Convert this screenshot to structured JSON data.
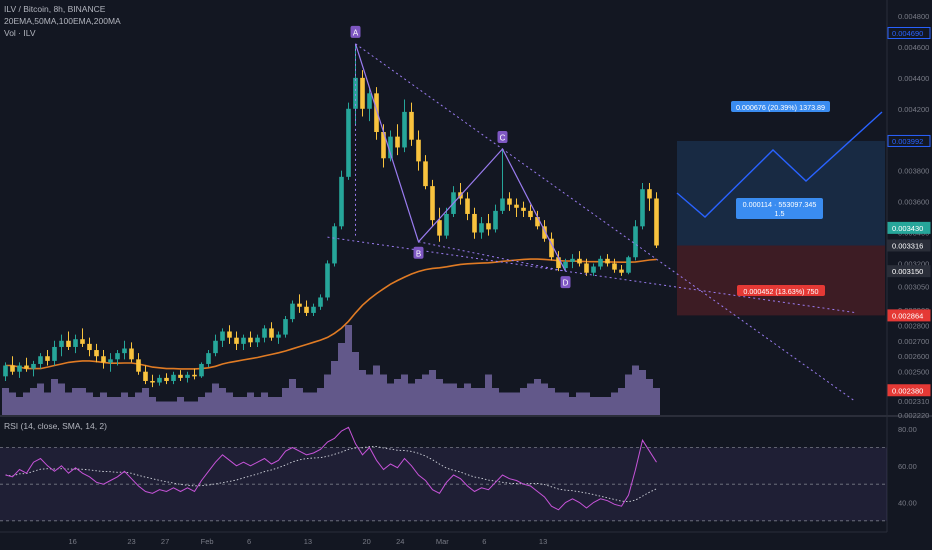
{
  "header": {
    "symbol_line": "ILV / Bitcoin, 8h, BINANCE",
    "ma_line": "20EMA,50MA,100EMA,200MA",
    "vol_line": "Vol · ILV",
    "rsi_line": "RSI (14, close, SMA, 14, 2)"
  },
  "colors": {
    "background": "#131722",
    "up_candle": "#26a69a",
    "down_candle": "#f9c33e",
    "ema": "#e07b24",
    "volume": "#7e6fae",
    "pattern": "#9a7cf0",
    "target": "#2962ff",
    "rsi": "#c653d8"
  },
  "chart_data": {
    "type": "candlestick",
    "price_axis": {
      "ticks": [
        "0.004800",
        "0.004600",
        "0.004400",
        "0.004200",
        "0.004000",
        "0.003800",
        "0.003600",
        "0.003400",
        "0.003200",
        "0.003050",
        "0.002900",
        "0.002800",
        "0.002700",
        "0.002600",
        "0.002500",
        "0.002400",
        "0.002310",
        "0.002220"
      ],
      "tags": [
        {
          "text": "0.004690",
          "price": 0.00469,
          "style": "blue-outline"
        },
        {
          "text": "0.003992",
          "price": 0.003992,
          "style": "blue-outline"
        },
        {
          "text": "0.003430",
          "price": 0.00343,
          "style": "green"
        },
        {
          "text": "0.003316",
          "price": 0.003316,
          "style": "gray"
        },
        {
          "text": "0.003150",
          "price": 0.00315,
          "style": "gray"
        },
        {
          "text": "0.002864",
          "price": 0.002864,
          "style": "red"
        },
        {
          "text": "0.002380",
          "price": 0.00238,
          "style": "red"
        }
      ]
    },
    "time_axis": [
      {
        "label": "16",
        "pos": 16
      },
      {
        "label": "23",
        "pos": 30
      },
      {
        "label": "27",
        "pos": 38
      },
      {
        "label": "Feb",
        "pos": 48
      },
      {
        "label": "6",
        "pos": 58
      },
      {
        "label": "13",
        "pos": 72
      },
      {
        "label": "20",
        "pos": 86
      },
      {
        "label": "24",
        "pos": 94
      },
      {
        "label": "Mar",
        "pos": 104
      },
      {
        "label": "6",
        "pos": 114
      },
      {
        "label": "13",
        "pos": 128
      }
    ],
    "candles": [
      [
        0.00247,
        0.00256,
        0.00244,
        0.00254
      ],
      [
        0.00254,
        0.0026,
        0.00248,
        0.0025
      ],
      [
        0.0025,
        0.00256,
        0.00246,
        0.00254
      ],
      [
        0.00254,
        0.00259,
        0.0025,
        0.00252
      ],
      [
        0.00252,
        0.00257,
        0.00247,
        0.00255
      ],
      [
        0.00255,
        0.00262,
        0.00252,
        0.0026
      ],
      [
        0.0026,
        0.00264,
        0.00254,
        0.00257
      ],
      [
        0.00257,
        0.0027,
        0.00254,
        0.00266
      ],
      [
        0.00266,
        0.00274,
        0.0026,
        0.0027
      ],
      [
        0.0027,
        0.00276,
        0.00264,
        0.00266
      ],
      [
        0.00266,
        0.00274,
        0.00262,
        0.00271
      ],
      [
        0.00271,
        0.00278,
        0.00266,
        0.00268
      ],
      [
        0.00268,
        0.00272,
        0.0026,
        0.00264
      ],
      [
        0.00264,
        0.00268,
        0.00256,
        0.0026
      ],
      [
        0.0026,
        0.00264,
        0.00252,
        0.00256
      ],
      [
        0.00256,
        0.00262,
        0.0025,
        0.00258
      ],
      [
        0.00258,
        0.00264,
        0.00254,
        0.00262
      ],
      [
        0.00262,
        0.0027,
        0.00258,
        0.00265
      ],
      [
        0.00265,
        0.00269,
        0.00256,
        0.00258
      ],
      [
        0.00258,
        0.00262,
        0.00248,
        0.0025
      ],
      [
        0.0025,
        0.00254,
        0.00242,
        0.00244
      ],
      [
        0.00244,
        0.00248,
        0.0024,
        0.00243
      ],
      [
        0.00243,
        0.00248,
        0.00241,
        0.00246
      ],
      [
        0.00246,
        0.00249,
        0.00242,
        0.00244
      ],
      [
        0.00244,
        0.0025,
        0.00242,
        0.00248
      ],
      [
        0.00248,
        0.00251,
        0.00244,
        0.00246
      ],
      [
        0.00246,
        0.0025,
        0.00243,
        0.00248
      ],
      [
        0.00248,
        0.00252,
        0.00245,
        0.00247
      ],
      [
        0.00247,
        0.00256,
        0.00246,
        0.00255
      ],
      [
        0.00255,
        0.00264,
        0.00253,
        0.00262
      ],
      [
        0.00262,
        0.00274,
        0.0026,
        0.0027
      ],
      [
        0.0027,
        0.00278,
        0.00266,
        0.00276
      ],
      [
        0.00276,
        0.0028,
        0.00268,
        0.00272
      ],
      [
        0.00272,
        0.00276,
        0.00264,
        0.00268
      ],
      [
        0.00268,
        0.00274,
        0.00264,
        0.00272
      ],
      [
        0.00272,
        0.00276,
        0.00266,
        0.00269
      ],
      [
        0.00269,
        0.00274,
        0.00266,
        0.00272
      ],
      [
        0.00272,
        0.0028,
        0.00269,
        0.00278
      ],
      [
        0.00278,
        0.00282,
        0.0027,
        0.00272
      ],
      [
        0.00272,
        0.00276,
        0.00268,
        0.00274
      ],
      [
        0.00274,
        0.00286,
        0.00272,
        0.00284
      ],
      [
        0.00284,
        0.00296,
        0.00282,
        0.00294
      ],
      [
        0.00294,
        0.003,
        0.00288,
        0.00292
      ],
      [
        0.00292,
        0.00296,
        0.00286,
        0.00288
      ],
      [
        0.00288,
        0.00294,
        0.00286,
        0.00292
      ],
      [
        0.00292,
        0.003,
        0.0029,
        0.00298
      ],
      [
        0.00298,
        0.00322,
        0.00296,
        0.0032
      ],
      [
        0.0032,
        0.00346,
        0.00318,
        0.00344
      ],
      [
        0.00344,
        0.0038,
        0.00342,
        0.00376
      ],
      [
        0.00376,
        0.00424,
        0.00374,
        0.0042
      ],
      [
        0.0042,
        0.00462,
        0.0041,
        0.0044
      ],
      [
        0.0044,
        0.00445,
        0.00415,
        0.0042
      ],
      [
        0.0042,
        0.00434,
        0.00412,
        0.0043
      ],
      [
        0.0043,
        0.00434,
        0.004,
        0.00405
      ],
      [
        0.00405,
        0.0041,
        0.00382,
        0.00388
      ],
      [
        0.00388,
        0.00406,
        0.00386,
        0.00402
      ],
      [
        0.00402,
        0.0041,
        0.0039,
        0.00395
      ],
      [
        0.00395,
        0.00426,
        0.00392,
        0.00418
      ],
      [
        0.00418,
        0.00424,
        0.00396,
        0.004
      ],
      [
        0.004,
        0.00406,
        0.0038,
        0.00386
      ],
      [
        0.00386,
        0.0039,
        0.00368,
        0.0037
      ],
      [
        0.0037,
        0.00374,
        0.00344,
        0.00348
      ],
      [
        0.00348,
        0.00356,
        0.00334,
        0.00338
      ],
      [
        0.00338,
        0.00356,
        0.00336,
        0.00352
      ],
      [
        0.00352,
        0.0037,
        0.0035,
        0.00366
      ],
      [
        0.00366,
        0.00372,
        0.00358,
        0.00362
      ],
      [
        0.00362,
        0.00366,
        0.00348,
        0.00352
      ],
      [
        0.00352,
        0.00356,
        0.00336,
        0.0034
      ],
      [
        0.0034,
        0.0035,
        0.00336,
        0.00346
      ],
      [
        0.00346,
        0.00352,
        0.00338,
        0.00342
      ],
      [
        0.00342,
        0.00358,
        0.0034,
        0.00354
      ],
      [
        0.00354,
        0.00394,
        0.00352,
        0.00362
      ],
      [
        0.00362,
        0.00366,
        0.00354,
        0.00358
      ],
      [
        0.00358,
        0.00362,
        0.0035,
        0.00356
      ],
      [
        0.00356,
        0.0036,
        0.0035,
        0.00354
      ],
      [
        0.00354,
        0.00358,
        0.00348,
        0.0035
      ],
      [
        0.0035,
        0.00354,
        0.00342,
        0.00344
      ],
      [
        0.00344,
        0.00348,
        0.00334,
        0.00336
      ],
      [
        0.00336,
        0.0034,
        0.00322,
        0.00324
      ],
      [
        0.00324,
        0.00328,
        0.00315,
        0.00317
      ],
      [
        0.00317,
        0.00323,
        0.00315,
        0.00321
      ],
      [
        0.00321,
        0.00326,
        0.00317,
        0.00323
      ],
      [
        0.00323,
        0.00328,
        0.00318,
        0.0032
      ],
      [
        0.0032,
        0.00323,
        0.00312,
        0.00314
      ],
      [
        0.00314,
        0.0032,
        0.00312,
        0.00318
      ],
      [
        0.00318,
        0.00325,
        0.00316,
        0.00323
      ],
      [
        0.00323,
        0.00326,
        0.00318,
        0.0032
      ],
      [
        0.0032,
        0.00323,
        0.00314,
        0.00316
      ],
      [
        0.00316,
        0.00319,
        0.00312,
        0.00314
      ],
      [
        0.00314,
        0.00325,
        0.00313,
        0.00324
      ],
      [
        0.00324,
        0.00348,
        0.00322,
        0.00344
      ],
      [
        0.00344,
        0.00372,
        0.00342,
        0.00368
      ],
      [
        0.00368,
        0.00372,
        0.00354,
        0.00362
      ],
      [
        0.00362,
        0.00366,
        0.0033,
        0.003316
      ]
    ],
    "ema_values": [
      0.00254,
      0.00254,
      0.00253,
      0.00252,
      0.00252,
      0.00252,
      0.00253,
      0.00254,
      0.00255,
      0.00256,
      0.002565,
      0.00257,
      0.00257,
      0.002565,
      0.00256,
      0.002555,
      0.002555,
      0.002556,
      0.002556,
      0.00255,
      0.00254,
      0.00253,
      0.002525,
      0.00252,
      0.00252,
      0.002518,
      0.002518,
      0.002518,
      0.00252,
      0.002525,
      0.002535,
      0.00255,
      0.00256,
      0.002568,
      0.002576,
      0.002584,
      0.002592,
      0.002602,
      0.002612,
      0.002622,
      0.002634,
      0.002648,
      0.002662,
      0.002676,
      0.00269,
      0.002704,
      0.002722,
      0.002748,
      0.002782,
      0.002826,
      0.00288,
      0.00293,
      0.00297,
      0.003005,
      0.003036,
      0.003066,
      0.00309,
      0.003112,
      0.003132,
      0.003148,
      0.00316,
      0.003168,
      0.003172,
      0.003178,
      0.003186,
      0.003194,
      0.003198,
      0.0032,
      0.003202,
      0.003204,
      0.003208,
      0.003214,
      0.003218,
      0.003222,
      0.003226,
      0.003228,
      0.003228,
      0.003226,
      0.003222,
      0.003218,
      0.003216,
      0.003215,
      0.003214,
      0.003212,
      0.003211,
      0.003211,
      0.00321,
      0.003209,
      0.003208,
      0.003208,
      0.00321,
      0.003216,
      0.003222,
      0.003226
    ],
    "volume": [
      0.3,
      0.25,
      0.2,
      0.25,
      0.3,
      0.35,
      0.25,
      0.4,
      0.35,
      0.25,
      0.3,
      0.3,
      0.25,
      0.2,
      0.25,
      0.2,
      0.2,
      0.25,
      0.2,
      0.25,
      0.3,
      0.2,
      0.15,
      0.15,
      0.15,
      0.2,
      0.15,
      0.15,
      0.2,
      0.25,
      0.35,
      0.3,
      0.25,
      0.2,
      0.2,
      0.25,
      0.2,
      0.25,
      0.2,
      0.2,
      0.3,
      0.4,
      0.3,
      0.25,
      0.25,
      0.3,
      0.45,
      0.6,
      0.8,
      1.0,
      0.7,
      0.5,
      0.45,
      0.55,
      0.45,
      0.35,
      0.4,
      0.45,
      0.35,
      0.4,
      0.45,
      0.5,
      0.4,
      0.35,
      0.35,
      0.3,
      0.35,
      0.3,
      0.3,
      0.45,
      0.3,
      0.25,
      0.25,
      0.25,
      0.3,
      0.35,
      0.4,
      0.35,
      0.3,
      0.25,
      0.25,
      0.2,
      0.25,
      0.25,
      0.2,
      0.2,
      0.2,
      0.25,
      0.3,
      0.45,
      0.55,
      0.5,
      0.4,
      0.3
    ],
    "rsi": [
      55,
      54,
      58,
      56,
      62,
      64,
      60,
      57,
      60,
      56,
      59,
      56,
      54,
      51,
      50,
      52,
      54,
      57,
      53,
      49,
      46,
      45,
      47,
      46,
      48,
      46,
      48,
      46,
      52,
      57,
      62,
      66,
      63,
      60,
      62,
      60,
      62,
      64,
      61,
      63,
      68,
      70,
      68,
      66,
      67,
      69,
      73,
      75,
      79,
      81,
      72,
      66,
      70,
      63,
      58,
      61,
      59,
      64,
      60,
      55,
      52,
      47,
      45,
      51,
      55,
      53,
      49,
      46,
      48,
      47,
      51,
      55,
      53,
      52,
      50,
      49,
      46,
      43,
      38,
      36,
      40,
      42,
      40,
      37,
      40,
      42,
      41,
      39,
      38,
      44,
      58,
      74,
      68,
      62
    ],
    "rsi_axis": {
      "ticks": [
        80,
        60,
        40
      ],
      "upper_band": 70,
      "lower_band": 30,
      "mid": 50,
      "range": [
        25,
        85
      ]
    },
    "pattern_points": [
      {
        "label": "A",
        "index": 50,
        "price": 0.00462
      },
      {
        "label": "B",
        "index": 59,
        "price": 0.00334
      },
      {
        "label": "C",
        "index": 71,
        "price": 0.00394
      },
      {
        "label": "D",
        "index": 80,
        "price": 0.00315
      }
    ],
    "position": {
      "entry": 0.003316,
      "target": 0.003992,
      "stop": 0.002864,
      "target_label": "0.000676 (20.39%) 1373.89",
      "entry_label": "0.000114 · 553097.345",
      "ratio_label": "1.5",
      "stop_label": "0.000452 (13.63%) 750"
    }
  }
}
